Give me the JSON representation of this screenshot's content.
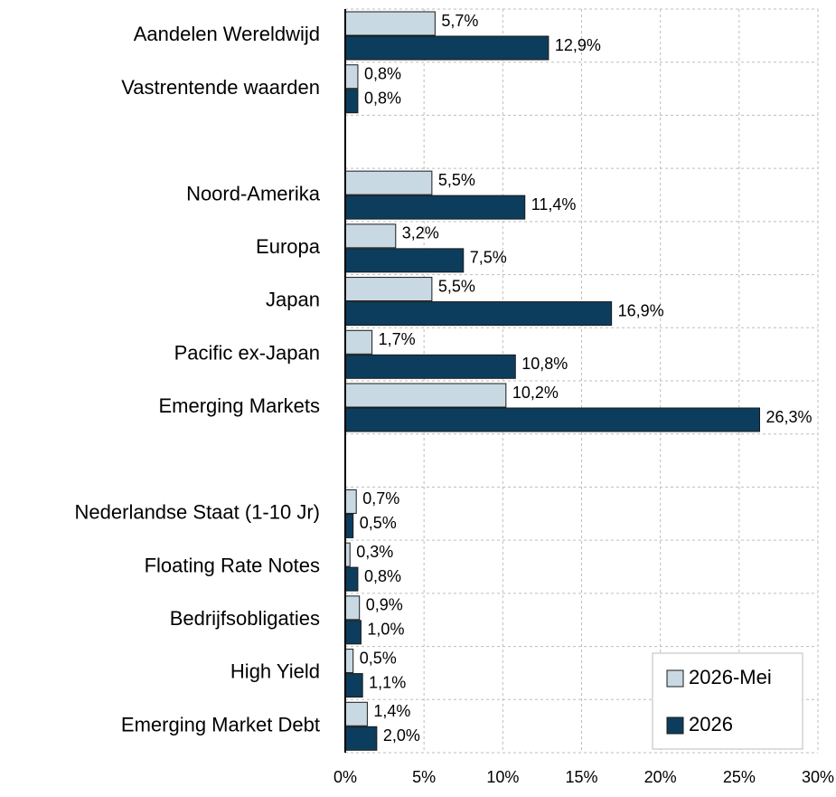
{
  "chart_data": {
    "type": "barh",
    "categories": [
      "Aandelen Wereldwijd",
      "Vastrentende waarden",
      null,
      "Noord-Amerika",
      "Europa",
      "Japan",
      "Pacific ex-Japan",
      "Emerging Markets",
      null,
      "Nederlandse Staat (1-10 Jr)",
      "Floating Rate Notes",
      "Bedrijfsobligaties",
      "High Yield",
      "Emerging Market Debt"
    ],
    "series": [
      {
        "name": "2026-Mei",
        "color": "#c9d9e3",
        "values": [
          5.7,
          0.8,
          null,
          5.5,
          3.2,
          5.5,
          1.7,
          10.2,
          null,
          0.7,
          0.3,
          0.9,
          0.5,
          1.4
        ],
        "value_labels": [
          "5,7%",
          "0,8%",
          null,
          "5,5%",
          "3,2%",
          "5,5%",
          "1,7%",
          "10,2%",
          null,
          "0,7%",
          "0,3%",
          "0,9%",
          "0,5%",
          "1,4%"
        ]
      },
      {
        "name": "2026",
        "color": "#0d3d5c",
        "values": [
          12.9,
          0.8,
          null,
          11.4,
          7.5,
          16.9,
          10.8,
          26.3,
          null,
          0.5,
          0.8,
          1.0,
          1.1,
          2.0
        ],
        "value_labels": [
          "12,9%",
          "0,8%",
          null,
          "11,4%",
          "7,5%",
          "16,9%",
          "10,8%",
          "26,3%",
          null,
          "0,5%",
          "0,8%",
          "1,0%",
          "1,1%",
          "2,0%"
        ]
      }
    ],
    "xlim": [
      0,
      30
    ],
    "xticks": [
      {
        "value": 0,
        "label": "0%"
      },
      {
        "value": 5,
        "label": "5%"
      },
      {
        "value": 10,
        "label": "10%"
      },
      {
        "value": 15,
        "label": "15%"
      },
      {
        "value": 20,
        "label": "20%"
      },
      {
        "value": 25,
        "label": "25%"
      },
      {
        "value": 30,
        "label": "30%"
      }
    ],
    "grid": true,
    "legend": "lower right"
  }
}
